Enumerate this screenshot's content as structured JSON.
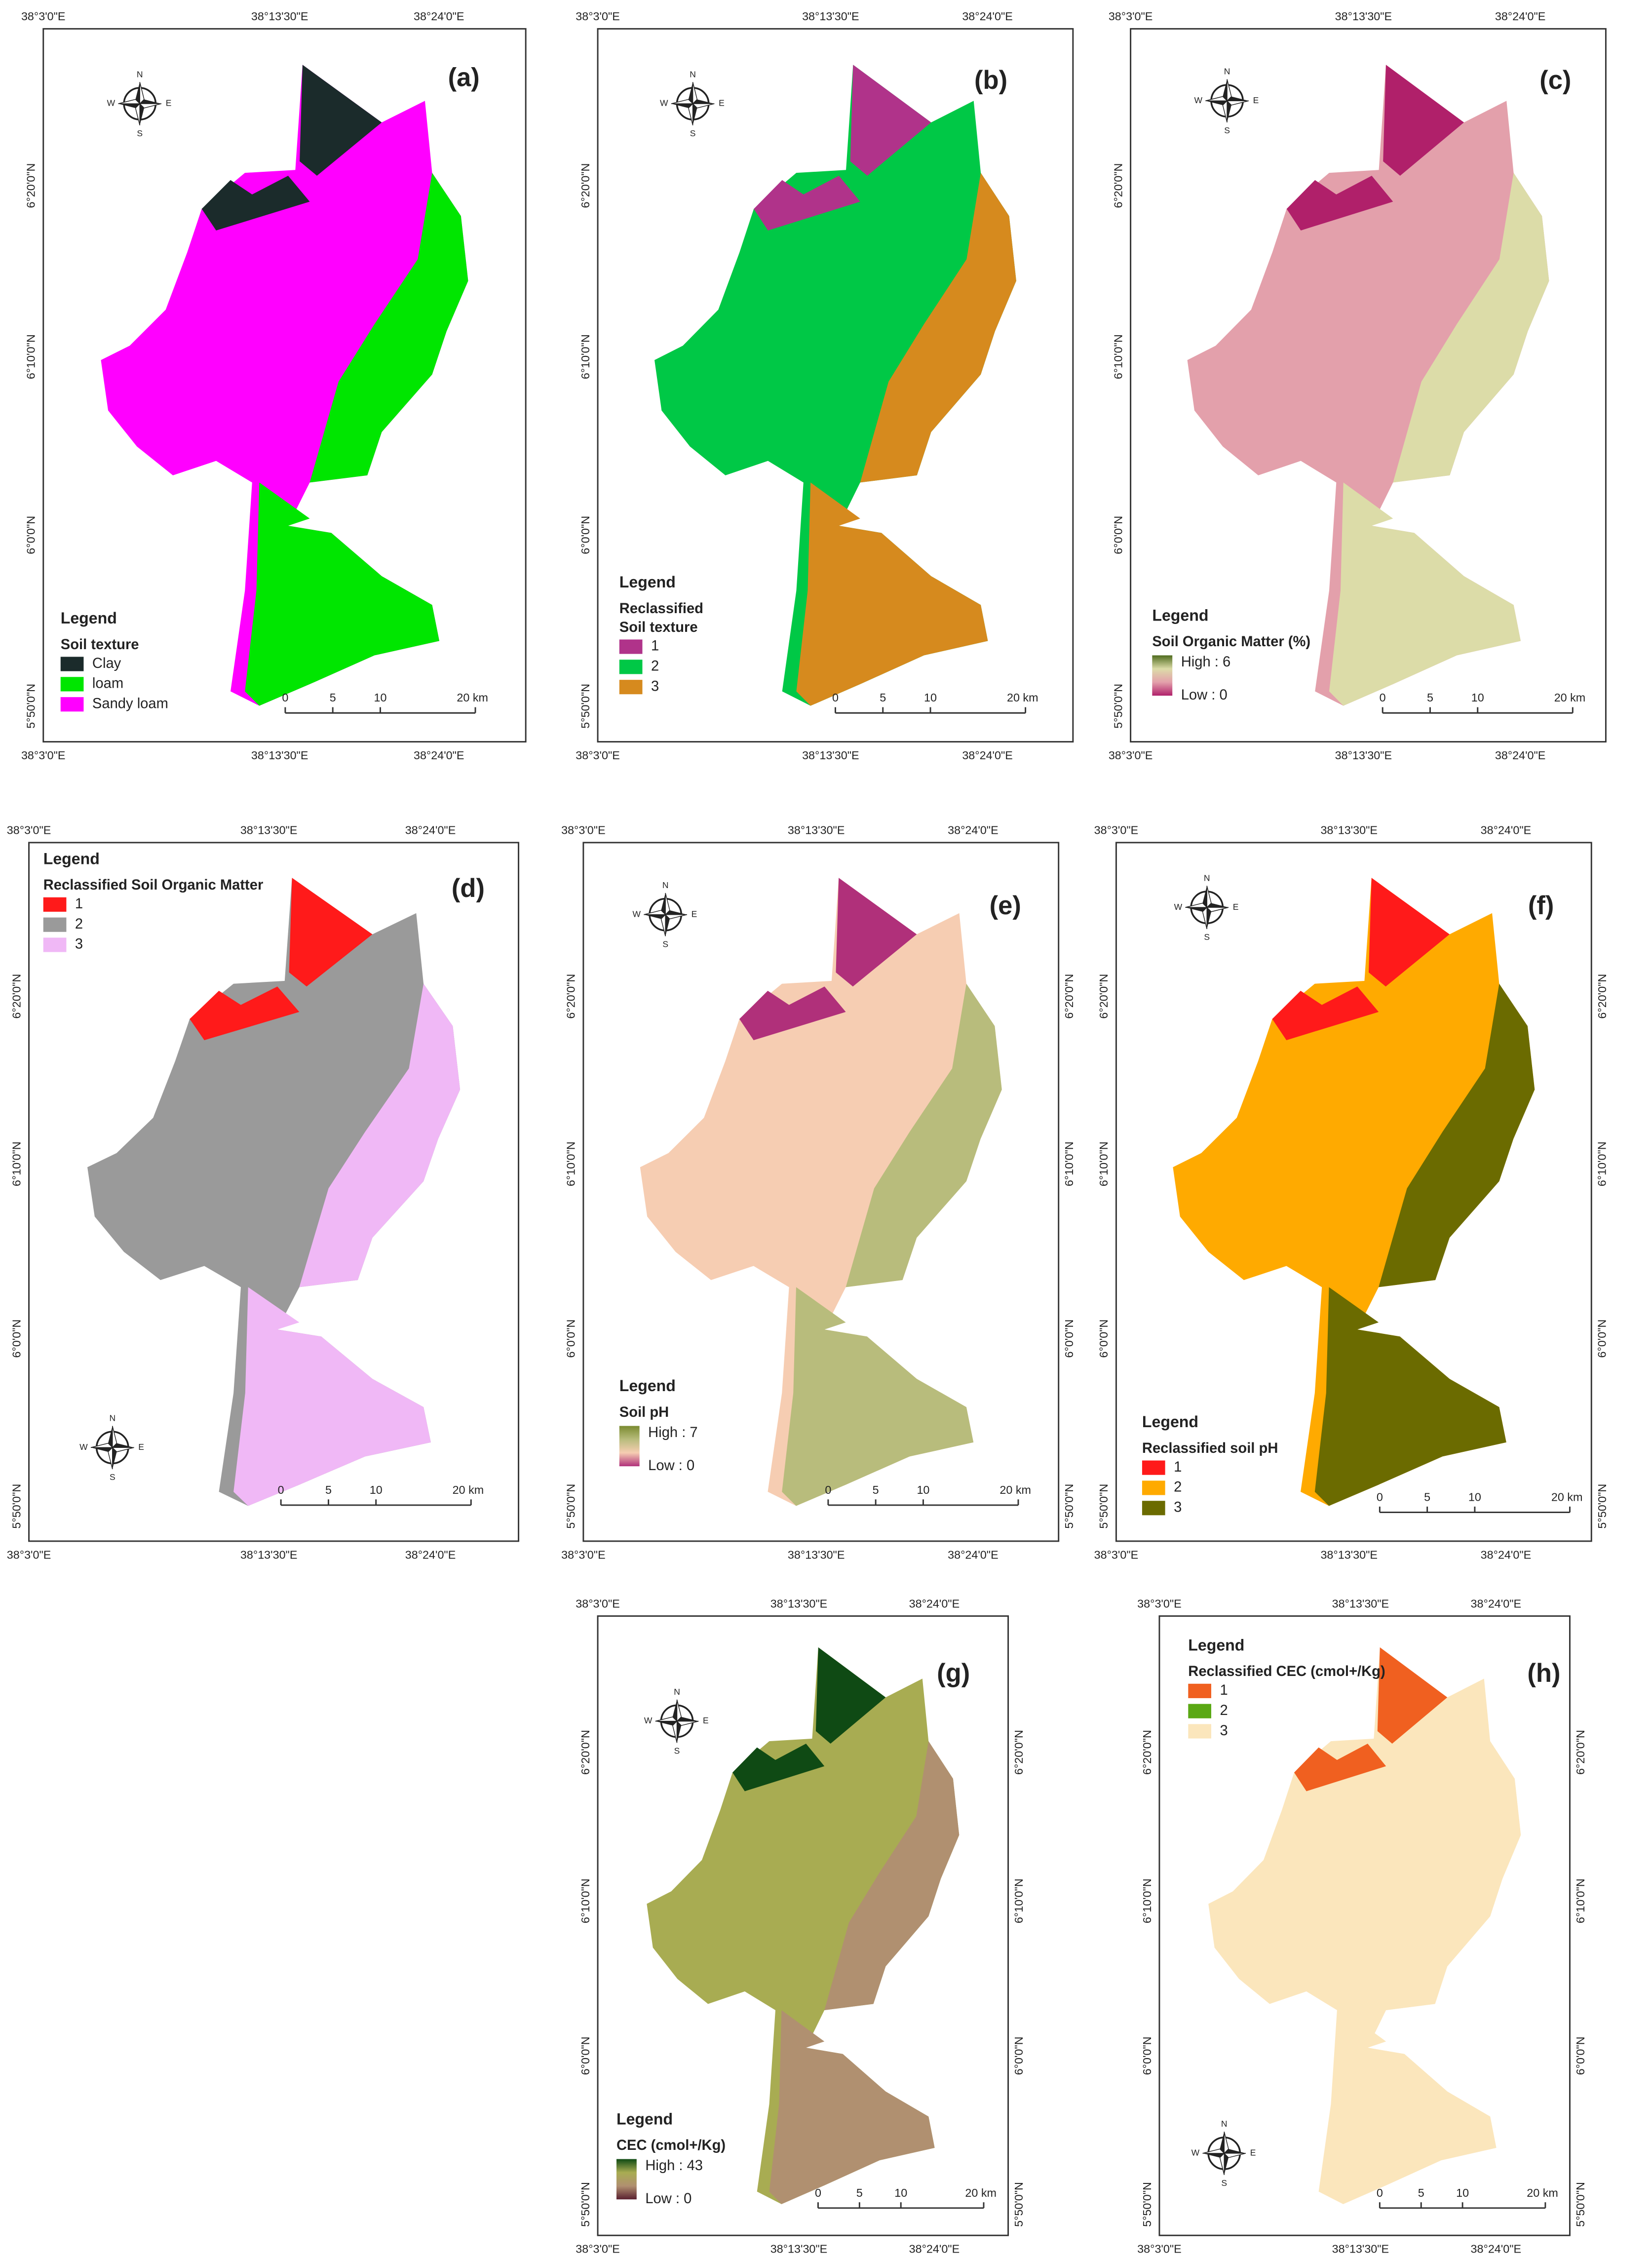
{
  "coords": {
    "lon": [
      "38°3'0\"E",
      "38°13'30\"E",
      "38°24'0\"E"
    ],
    "lat": [
      "6°20'0\"N",
      "6°10'0\"N",
      "6°0'0\"N",
      "5°50'0\"N"
    ]
  },
  "scale_bar": [
    "0",
    "5",
    "10",
    "20 km"
  ],
  "compass": {
    "n": "N",
    "e": "E",
    "s": "S",
    "w": "W"
  },
  "panels": [
    {
      "label": "(a)",
      "legend": "Legend",
      "legend_title": [
        "Soil texture"
      ],
      "items": [
        {
          "label": "Clay",
          "color": "#1b2b2b"
        },
        {
          "label": "loam",
          "color": "#00e600"
        },
        {
          "label": "Sandy loam",
          "color": "#ff00ff"
        }
      ]
    },
    {
      "label": "(b)",
      "legend": "Legend",
      "legend_title": [
        "Reclassified",
        "Soil texture"
      ],
      "items": [
        {
          "label": "1",
          "color": "#b0338a"
        },
        {
          "label": "2",
          "color": "#00c846"
        },
        {
          "label": "3",
          "color": "#d68a1e"
        }
      ]
    },
    {
      "label": "(c)",
      "legend": "Legend",
      "legend_title": [
        "Soil Organic Matter (%)"
      ],
      "gradient": {
        "high": "High : 6",
        "low": "Low : 0",
        "colors": [
          "#4f6b1e",
          "#dcdca8",
          "#e3a0ab",
          "#b0206a"
        ]
      }
    },
    {
      "label": "(d)",
      "legend": "Legend",
      "legend_title": [
        "Reclassified Soil Organic Matter"
      ],
      "items": [
        {
          "label": "1",
          "color": "#ff1a1a"
        },
        {
          "label": "2",
          "color": "#9a9a9a"
        },
        {
          "label": "3",
          "color": "#f0b8f6"
        }
      ]
    },
    {
      "label": "(e)",
      "legend": "Legend",
      "legend_title": [
        "Soil pH"
      ],
      "gradient": {
        "high": "High : 7",
        "low": "Low : 0",
        "colors": [
          "#7a8a30",
          "#b8bc7c",
          "#f6cdb2",
          "#b0307a"
        ]
      }
    },
    {
      "label": "(f)",
      "legend": "Legend",
      "legend_title": [
        "Reclassified soil pH"
      ],
      "items": [
        {
          "label": "1",
          "color": "#ff1a1a"
        },
        {
          "label": "2",
          "color": "#ffaa00"
        },
        {
          "label": "3",
          "color": "#6b6b00"
        }
      ]
    },
    {
      "label": "(g)",
      "legend": "Legend",
      "legend_title": [
        "CEC (cmol+/Kg)"
      ],
      "gradient": {
        "high": "High : 43",
        "low": "Low : 0",
        "colors": [
          "#0f4a14",
          "#a8ac52",
          "#b09070",
          "#5a2030"
        ]
      }
    },
    {
      "label": "(h)",
      "legend": "Legend",
      "legend_title": [
        "Reclassified CEC (cmol+/Kg)"
      ],
      "items": [
        {
          "label": "1",
          "color": "#f06020"
        },
        {
          "label": "2",
          "color": "#5aa814"
        },
        {
          "label": "3",
          "color": "#fbe6bc"
        }
      ]
    }
  ]
}
